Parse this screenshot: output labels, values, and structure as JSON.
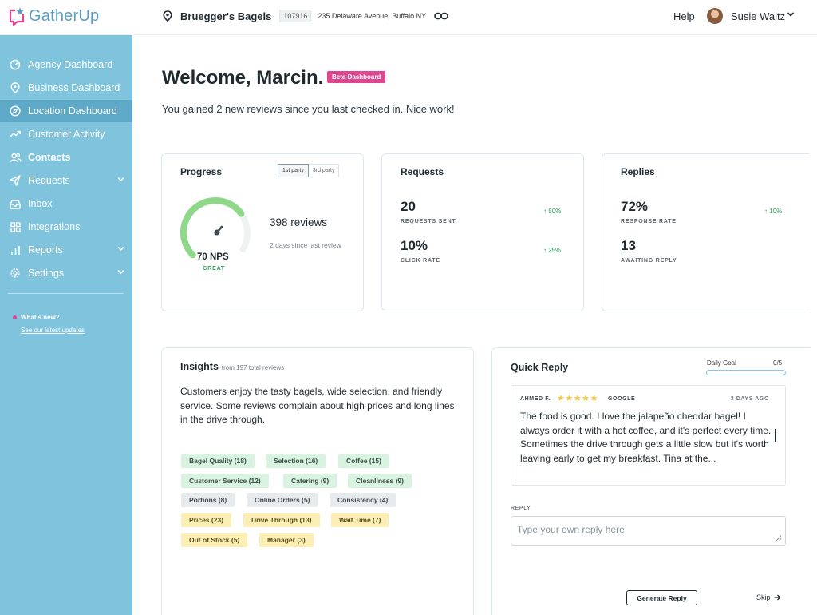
{
  "app": {
    "name": "GatherUp"
  },
  "header": {
    "location_name": "Bruegger's Bagels",
    "location_id": "107916",
    "address": "235 Delaware Avenue, Buffalo NY",
    "help": "Help",
    "user_name": "Susie Waltz"
  },
  "sidebar": {
    "items": [
      {
        "label": "Agency Dashboard",
        "icon": "gauge-icon"
      },
      {
        "label": "Business Dashboard",
        "icon": "pin-icon"
      },
      {
        "label": "Location Dashboard",
        "icon": "compass-icon",
        "active": true
      },
      {
        "label": "Customer Activity",
        "icon": "trend-icon"
      },
      {
        "label": "Contacts",
        "icon": "users-icon"
      },
      {
        "label": "Requests",
        "icon": "send-icon"
      },
      {
        "label": "Inbox",
        "icon": "inbox-icon"
      },
      {
        "label": "Integrations",
        "icon": "grid-icon"
      },
      {
        "label": "Reports",
        "icon": "bars-icon"
      },
      {
        "label": "Settings",
        "icon": "gear-icon"
      }
    ],
    "whats_new": "What's new?",
    "updates_link": "See our latest updates"
  },
  "main": {
    "welcome": "Welcome, Marcin.",
    "beta_badge": "Beta Dashboard",
    "gained": "You gained 2 new reviews since you last checked in. Nice work!"
  },
  "progress": {
    "title": "Progress",
    "toggle": [
      "1st party",
      "3rd party"
    ],
    "nps": "70 NPS",
    "nps_rating": "GREAT",
    "nps_fraction": 0.7,
    "reviews": "398 reviews",
    "since_last": "2 days since last review"
  },
  "requests": {
    "title": "Requests",
    "sent_value": "20",
    "sent_label": "REQUESTS SENT",
    "sent_trend": "50%",
    "click_value": "10%",
    "click_label": "CLICK RATE",
    "click_trend": "25%"
  },
  "replies": {
    "title": "Replies",
    "response_value": "72%",
    "response_label": "RESPONSE RATE",
    "response_trend": "10%",
    "awaiting_value": "13",
    "awaiting_label": "AWAITING REPLY"
  },
  "insights": {
    "title": "Insights",
    "subtitle": "from 197 total reviews",
    "summary": "Customers enjoy the tasty bagels, wide selection, and friendly service. Some reviews complain about high prices and long lines in the drive through.",
    "tags": [
      {
        "label": "Bagel Quality (18)",
        "tone": "green"
      },
      {
        "label": "Selection (16)",
        "tone": "green"
      },
      {
        "label": "Coffee (15)",
        "tone": "green"
      },
      {
        "label": "Customer Service (12)",
        "tone": "green"
      },
      {
        "label": "Catering (9)",
        "tone": "green"
      },
      {
        "label": "Cleanliness (9)",
        "tone": "green"
      },
      {
        "label": "Portions (8)",
        "tone": "gray"
      },
      {
        "label": "Online Orders (5)",
        "tone": "gray"
      },
      {
        "label": "Consistency (4)",
        "tone": "gray"
      },
      {
        "label": "Prices (23)",
        "tone": "yellow"
      },
      {
        "label": "Drive Through (13)",
        "tone": "yellow"
      },
      {
        "label": "Wait Time (7)",
        "tone": "yellow"
      },
      {
        "label": "Out of Stock (5)",
        "tone": "yellow"
      },
      {
        "label": "Manager (3)",
        "tone": "yellow"
      }
    ]
  },
  "quick_reply": {
    "title": "Quick Reply",
    "goal_label": "Daily Goal",
    "goal_count": "0/5",
    "goal_fraction": 0,
    "reviewer": "AHMED F.",
    "stars": 5,
    "source": "GOOGLE",
    "age": "3 DAYS AGO",
    "review_text": "The food is good. I love the jalapeño cheddar bagel! I always order it with a hot coffee, and it's perfect every time. Sometimes the drive through gets a little slow but it's worth leaving early to get my breakfast. Tina at the...",
    "reply_label": "REPLY",
    "reply_placeholder": "Type your own reply here",
    "generate_label": "Generate Reply",
    "skip_label": "Skip"
  },
  "colors": {
    "sidebar": "#7fc3dc",
    "sidebar_active": "#5ea9c7",
    "accent_pink": "#e2458f",
    "trend_green": "#2f9c5a",
    "gauge_green": "#8fd88a",
    "star_yellow": "#f5c542"
  }
}
